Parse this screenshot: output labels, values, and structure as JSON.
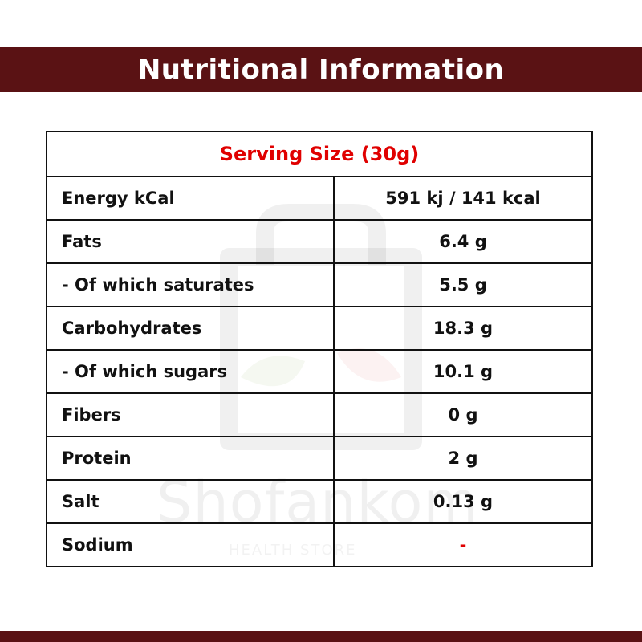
{
  "header": {
    "title": "Nutritional Information"
  },
  "watermark": {
    "brand": "Shofankom",
    "tagline": "HEALTH STORE"
  },
  "table": {
    "serving_size": "Serving Size (30g)",
    "rows": [
      {
        "label": "Energy kCal",
        "value": "591 kj / 141 kcal"
      },
      {
        "label": "Fats",
        "value": "6.4 g"
      },
      {
        "label": "- Of which saturates",
        "value": "5.5 g"
      },
      {
        "label": "Carbohydrates",
        "value": "18.3 g"
      },
      {
        "label": "- Of which sugars",
        "value": "10.1 g"
      },
      {
        "label": "Fibers",
        "value": "0 g"
      },
      {
        "label": "Protein",
        "value": "2 g"
      },
      {
        "label": "Salt",
        "value": "0.13 g"
      },
      {
        "label": "Sodium",
        "value": "-"
      }
    ]
  },
  "colors": {
    "band": "#5a1214",
    "accent": "#e00000",
    "text": "#111111"
  }
}
